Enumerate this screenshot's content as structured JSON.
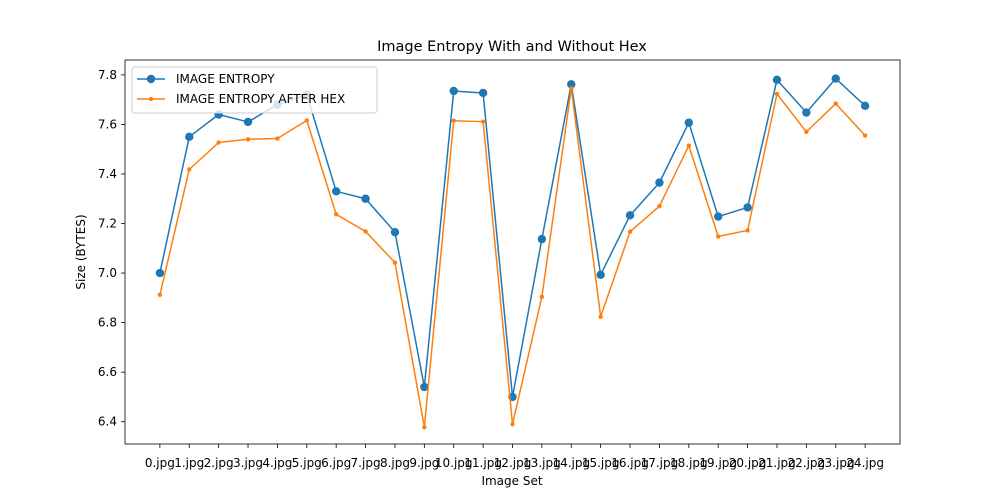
{
  "chart_data": {
    "type": "line",
    "title": "Image Entropy With and Without Hex",
    "xlabel": "Image Set",
    "ylabel": "Size (BYTES)",
    "categories": [
      "0.jpg",
      "1.jpg",
      "2.jpg",
      "3.jpg",
      "4.jpg",
      "5.jpg",
      "6.jpg",
      "7.jpg",
      "8.jpg",
      "9.jpg",
      "10.jpg",
      "11.jpg",
      "12.jpg",
      "13.jpg",
      "14.jpg",
      "15.jpg",
      "16.jpg",
      "17.jpg",
      "18.jpg",
      "19.jpg",
      "20.jpg",
      "21.jpg",
      "22.jpg",
      "23.jpg",
      "24.jpg"
    ],
    "ylim": [
      6.31,
      7.86
    ],
    "yticks": [
      6.4,
      6.6,
      6.8,
      7.0,
      7.2,
      7.4,
      7.6,
      7.8
    ],
    "ytick_labels": [
      "6.4",
      "6.6",
      "6.8",
      "7.0",
      "7.2",
      "7.4",
      "7.6",
      "7.8"
    ],
    "grid": false,
    "legend_position": "upper-left",
    "series": [
      {
        "name": "IMAGE ENTROPY",
        "color": "#1f77b4",
        "marker": "circle-large",
        "values": [
          7.0,
          7.55,
          7.64,
          7.61,
          7.68,
          7.72,
          7.33,
          7.3,
          7.165,
          6.54,
          7.735,
          7.727,
          6.5,
          7.137,
          7.762,
          6.993,
          7.233,
          7.365,
          7.607,
          7.228,
          7.265,
          7.78,
          7.648,
          7.785,
          7.675
        ]
      },
      {
        "name": "IMAGE ENTROPY AFTER HEX",
        "color": "#ff7f0e",
        "marker": "circle-small",
        "values": [
          6.912,
          7.418,
          7.527,
          7.54,
          7.543,
          7.616,
          7.237,
          7.168,
          7.042,
          6.378,
          7.615,
          7.611,
          6.39,
          6.904,
          7.745,
          6.824,
          7.167,
          7.27,
          7.514,
          7.148,
          7.172,
          7.723,
          7.57,
          7.684,
          7.555
        ]
      }
    ]
  }
}
